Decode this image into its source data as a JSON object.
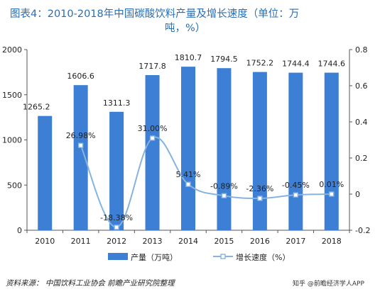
{
  "title_line1": "图表4：2010-2018年中国碳酸饮料产量及增长速度（单位：万",
  "title_line2": "吨，%）",
  "source": "资料来源： 中国饮料工业协会 前瞻产业研究院整理",
  "watermark": "知乎 @前瞻经济学人APP",
  "colors": {
    "bar": "#3d7fd4",
    "line": "#86b3e0",
    "title": "#2a6eb5"
  },
  "chart_data": {
    "type": "bar",
    "categories": [
      "2010",
      "2011",
      "2012",
      "2013",
      "2014",
      "2015",
      "2016",
      "2017",
      "2018"
    ],
    "series": [
      {
        "name": "产量（万吨）",
        "type": "bar",
        "axis": "left",
        "values": [
          1265.2,
          1606.6,
          1311.3,
          1717.8,
          1810.7,
          1794.5,
          1752.2,
          1744.4,
          1744.6
        ],
        "labels": [
          "1265.2",
          "1606.6",
          "1311.3",
          "1717.8",
          "1810.7",
          "1794.5",
          "1752.2",
          "1744.4",
          "1744.6"
        ]
      },
      {
        "name": "增长速度（%）",
        "type": "line",
        "axis": "right",
        "values": [
          null,
          0.2698,
          -0.1838,
          0.31,
          0.0541,
          -0.0089,
          -0.0236,
          -0.0045,
          0.0001
        ],
        "labels": [
          "",
          "26.98%",
          "-18.38%",
          "31.00%",
          "5.41%",
          "-0.89%",
          "-2.36%",
          "-0.45%",
          "0.01%"
        ]
      }
    ],
    "y_left": {
      "min": 0,
      "max": 2000,
      "ticks": [
        "0",
        "500",
        "1000",
        "1500",
        "2000"
      ]
    },
    "y_right": {
      "min": -0.2,
      "max": 0.8,
      "ticks": [
        "-0.2",
        "0",
        "0.2",
        "0.4",
        "0.6",
        "0.8"
      ]
    },
    "legend_position": "bottom",
    "grid": false
  }
}
